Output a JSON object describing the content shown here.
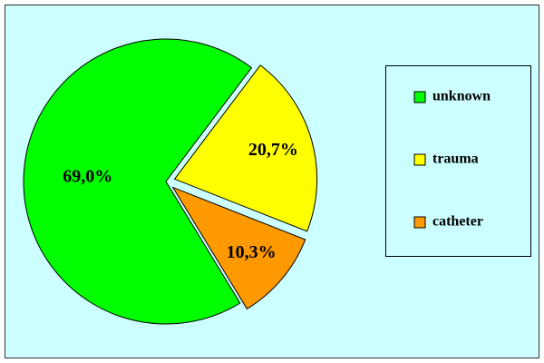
{
  "chart_data": {
    "type": "pie",
    "categories": [
      "unknown",
      "trauma",
      "catheter"
    ],
    "values": [
      69.0,
      20.7,
      10.3
    ],
    "value_labels": [
      "69,0%",
      "20,7%",
      "10,3%"
    ],
    "colors": [
      "#00ff00",
      "#ffff00",
      "#ff9900"
    ],
    "legend": "right"
  }
}
